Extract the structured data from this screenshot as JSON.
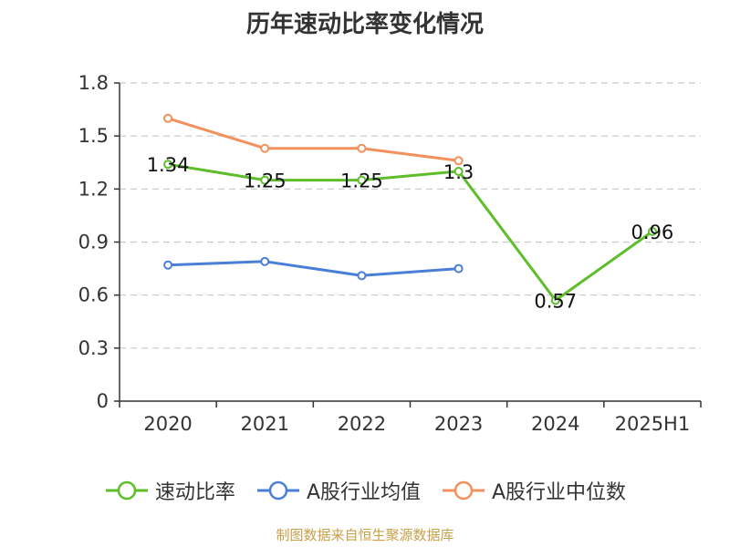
{
  "chart_data": {
    "type": "line",
    "title": "历年速动比率变化情况",
    "categories": [
      "2020",
      "2021",
      "2022",
      "2023",
      "2024",
      "2025H1"
    ],
    "ylim": [
      0,
      1.8
    ],
    "yticks": [
      "0",
      "0.3",
      "0.6",
      "0.9",
      "1.2",
      "1.5",
      "1.8"
    ],
    "grid": true,
    "legend_position": "bottom",
    "series": [
      {
        "name": "速动比率",
        "color": "#5dbe2a",
        "values": [
          1.34,
          1.25,
          1.25,
          1.3,
          0.57,
          0.96
        ],
        "data_labels": [
          "1.34",
          "1.25",
          "1.25",
          "1.3",
          "0.57",
          "0.96"
        ]
      },
      {
        "name": "A股行业均值",
        "color": "#4a7fd8",
        "values": [
          0.77,
          0.79,
          0.71,
          0.75,
          null,
          null
        ]
      },
      {
        "name": "A股行业中位数",
        "color": "#f4905c",
        "values": [
          1.6,
          1.43,
          1.43,
          1.36,
          null,
          null
        ]
      }
    ]
  },
  "source": "制图数据来自恒生聚源数据库"
}
